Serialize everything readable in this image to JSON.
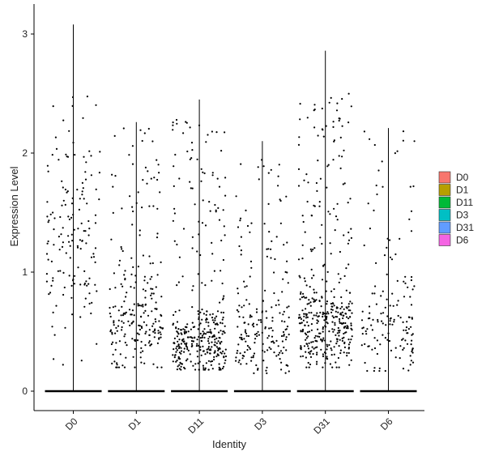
{
  "chart_data": {
    "type": "violin-jitter",
    "xlabel": "Identity",
    "ylabel": "Expression Level",
    "categories": [
      "D0",
      "D1",
      "D11",
      "D3",
      "D31",
      "D6"
    ],
    "yticks": [
      0,
      1,
      2,
      3
    ],
    "ylim": [
      -0.18,
      3.25
    ],
    "legend": {
      "position": "right",
      "entries": [
        {
          "label": "D0",
          "color": "#F8766D"
        },
        {
          "label": "D1",
          "color": "#B79F00"
        },
        {
          "label": "D11",
          "color": "#00BA38"
        },
        {
          "label": "D3",
          "color": "#00BFC4"
        },
        {
          "label": "D31",
          "color": "#619CFF"
        },
        {
          "label": "D6",
          "color": "#F564E3"
        }
      ]
    },
    "series": [
      {
        "name": "D0",
        "max": 3.08,
        "n_positive": 150,
        "pos_min": 0.2,
        "pos_max": 2.48,
        "pos_center": 1.25
      },
      {
        "name": "D1",
        "max": 2.26,
        "n_positive": 230,
        "pos_min": 0.2,
        "pos_max": 2.27,
        "pos_center": 0.6
      },
      {
        "name": "D11",
        "max": 2.45,
        "n_positive": 360,
        "pos_min": 0.18,
        "pos_max": 2.28,
        "pos_center": 0.38
      },
      {
        "name": "D3",
        "max": 2.1,
        "n_positive": 200,
        "pos_min": 0.15,
        "pos_max": 1.95,
        "pos_center": 0.45
      },
      {
        "name": "D31",
        "max": 2.86,
        "n_positive": 400,
        "pos_min": 0.2,
        "pos_max": 2.5,
        "pos_center": 0.55
      },
      {
        "name": "D6",
        "max": 2.21,
        "n_positive": 150,
        "pos_min": 0.17,
        "pos_max": 2.2,
        "pos_center": 0.5
      }
    ],
    "grid": false
  }
}
